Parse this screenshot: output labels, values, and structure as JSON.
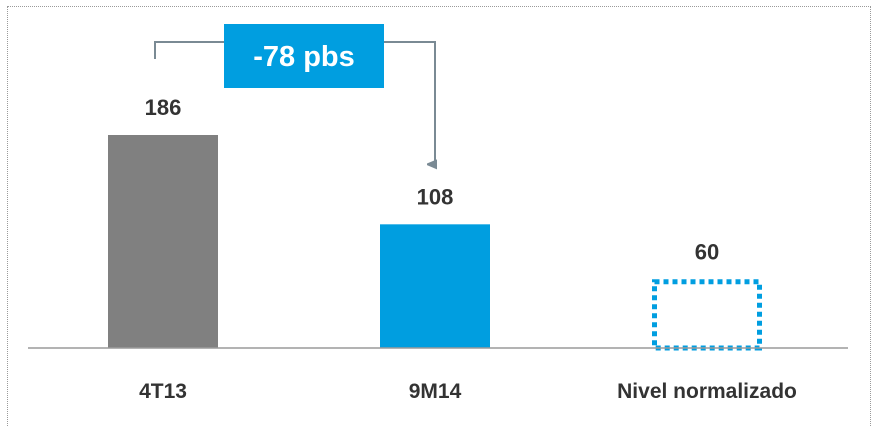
{
  "chart_data": {
    "type": "bar",
    "categories": [
      "4T13",
      "9M14",
      "Nivel normalizado"
    ],
    "values": [
      186,
      108,
      60
    ],
    "value_labels": [
      "186",
      "108",
      "60"
    ],
    "styles": [
      "solid",
      "solid",
      "dotted-outline"
    ],
    "colors": [
      "#808080",
      "#009ee0",
      "#009ee0"
    ],
    "ylim": [
      0,
      200
    ],
    "grid": false,
    "legend": "none",
    "title": "",
    "xlabel": "",
    "ylabel": "",
    "annotation": {
      "text": "-78 pbs",
      "from": "4T13",
      "to": "9M14",
      "badge_color": "#009ee0",
      "connector_color": "#7a8a94"
    }
  }
}
